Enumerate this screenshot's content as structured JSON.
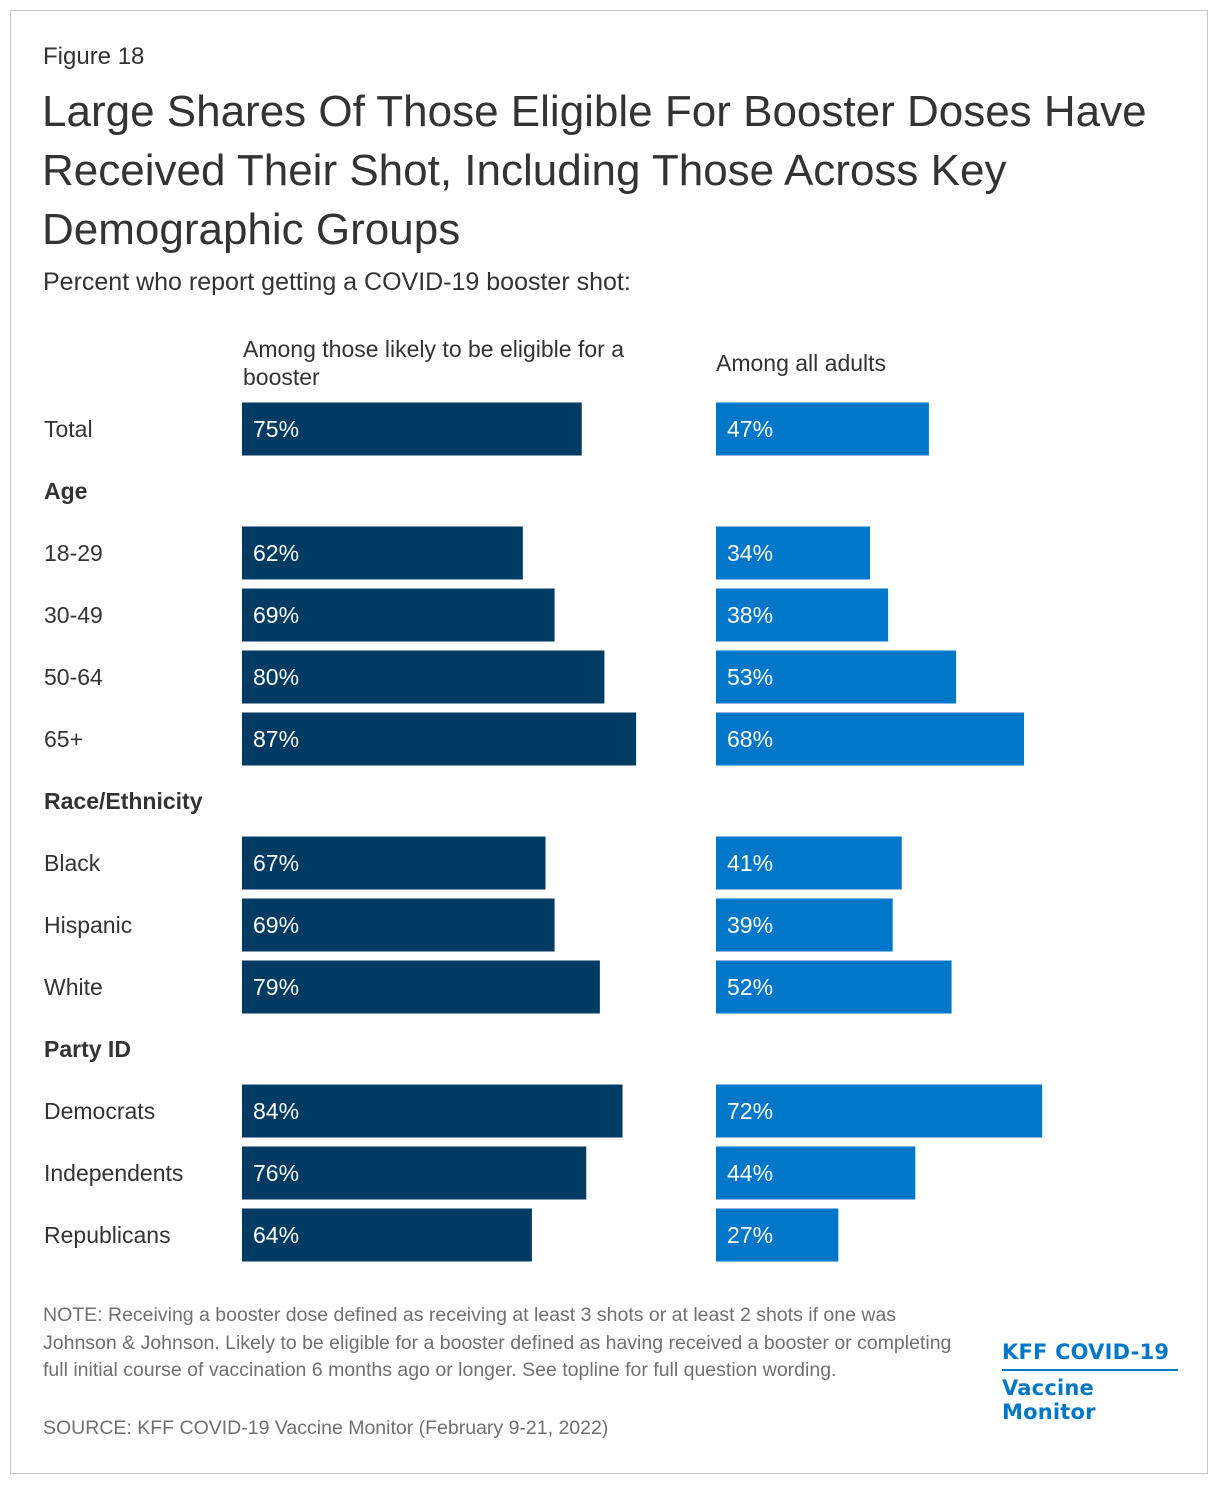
{
  "figure_label": "Figure 18",
  "title": "Large Shares Of Those Eligible For Booster Doses Have Received Their Shot, Including Those Across Key Demographic Groups",
  "subtitle": "Percent who report getting a COVID-19 booster shot:",
  "colors": {
    "eligible": "#003b64",
    "all_adults": "#0077c8",
    "text": "#333333",
    "note": "#707070"
  },
  "chart_data": {
    "type": "bar",
    "orientation": "horizontal",
    "title": "Large Shares Of Those Eligible For Booster Doses Have Received Their Shot, Including Those Across Key Demographic Groups",
    "subtitle": "Percent who report getting a COVID-19 booster shot:",
    "xlim": [
      0,
      100
    ],
    "series": [
      {
        "name": "Among those likely to be eligible for a booster",
        "color": "#003b64"
      },
      {
        "name": "Among all adults",
        "color": "#0077c8"
      }
    ],
    "rows": [
      {
        "kind": "category",
        "label": "Total",
        "values": [
          75,
          47
        ],
        "labels": [
          "75%",
          "47%"
        ]
      },
      {
        "kind": "header",
        "label": "Age"
      },
      {
        "kind": "category",
        "label": "18-29",
        "values": [
          62,
          34
        ],
        "labels": [
          "62%",
          "34%"
        ]
      },
      {
        "kind": "category",
        "label": "30-49",
        "values": [
          69,
          38
        ],
        "labels": [
          "69%",
          "38%"
        ]
      },
      {
        "kind": "category",
        "label": "50-64",
        "values": [
          80,
          53
        ],
        "labels": [
          "80%",
          "53%"
        ]
      },
      {
        "kind": "category",
        "label": "65+",
        "values": [
          87,
          68
        ],
        "labels": [
          "87%",
          "68%"
        ]
      },
      {
        "kind": "header",
        "label": "Race/Ethnicity"
      },
      {
        "kind": "category",
        "label": "Black",
        "values": [
          67,
          41
        ],
        "labels": [
          "67%",
          "41%"
        ]
      },
      {
        "kind": "category",
        "label": "Hispanic",
        "values": [
          69,
          39
        ],
        "labels": [
          "69%",
          "39%"
        ]
      },
      {
        "kind": "category",
        "label": "White",
        "values": [
          79,
          52
        ],
        "labels": [
          "79%",
          "52%"
        ]
      },
      {
        "kind": "header",
        "label": "Party ID"
      },
      {
        "kind": "category",
        "label": "Democrats",
        "values": [
          84,
          72
        ],
        "labels": [
          "84%",
          "72%"
        ]
      },
      {
        "kind": "category",
        "label": "Independents",
        "values": [
          76,
          44
        ],
        "labels": [
          "76%",
          "44%"
        ]
      },
      {
        "kind": "category",
        "label": "Republicans",
        "values": [
          64,
          27
        ],
        "labels": [
          "64%",
          "27%"
        ]
      }
    ]
  },
  "notes": {
    "note": "NOTE: Receiving a booster dose defined as receiving at least 3 shots or at least 2 shots if one was Johnson & Johnson. Likely to be eligible for a booster defined as having received a booster or completing full initial course of vaccination 6 months ago or longer. See topline for full question wording.",
    "source": "SOURCE: KFF COVID-19 Vaccine Monitor (February 9-21, 2022)"
  },
  "logo": {
    "line1": "KFF COVID-19",
    "line2": "Vaccine Monitor"
  }
}
